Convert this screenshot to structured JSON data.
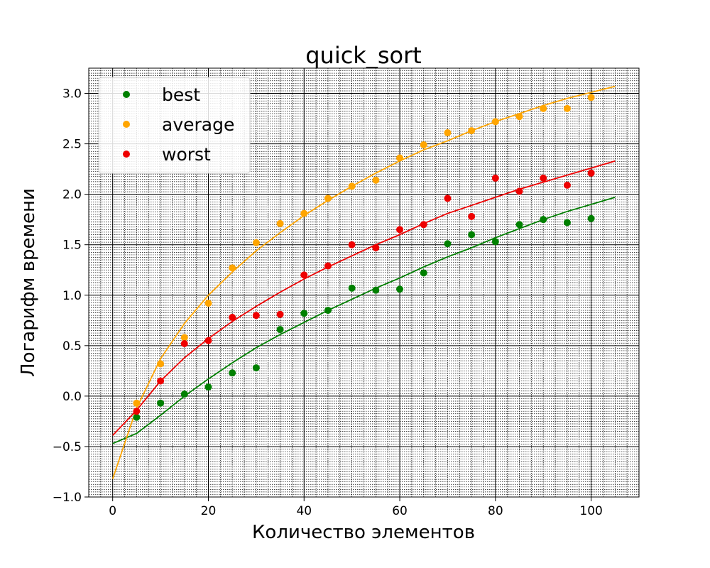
{
  "chart_data": {
    "type": "scatter",
    "title": "quick_sort",
    "xlabel": "Количество элементов",
    "ylabel": "Логарифм времени",
    "xlim": [
      -5,
      110
    ],
    "ylim": [
      -1.0,
      3.25
    ],
    "x_ticks": [
      0,
      20,
      40,
      60,
      80,
      100
    ],
    "x_tick_labels": [
      "0",
      "20",
      "40",
      "60",
      "80",
      "100"
    ],
    "y_ticks": [
      -1.0,
      -0.5,
      0.0,
      0.5,
      1.0,
      1.5,
      2.0,
      2.5,
      3.0
    ],
    "y_tick_labels": [
      "−1.0",
      "−0.5",
      "0.0",
      "0.5",
      "1.0",
      "1.5",
      "2.0",
      "2.5",
      "3.0"
    ],
    "grid": "major and minor",
    "legend_position": "top-left",
    "x": [
      5,
      10,
      15,
      20,
      25,
      30,
      35,
      40,
      45,
      50,
      55,
      60,
      65,
      70,
      75,
      80,
      85,
      90,
      95,
      100
    ],
    "series": [
      {
        "name": "best",
        "color": "#008000",
        "values": [
          -0.21,
          -0.07,
          0.02,
          0.09,
          0.23,
          0.28,
          0.66,
          0.82,
          0.85,
          1.07,
          1.05,
          1.06,
          1.22,
          1.51,
          1.6,
          1.53,
          1.7,
          1.75,
          1.72,
          1.76
        ],
        "fit_x": [
          0,
          5,
          10,
          15,
          20,
          25,
          30,
          35,
          40,
          45,
          50,
          55,
          60,
          65,
          70,
          75,
          80,
          85,
          90,
          95,
          100,
          105
        ],
        "fit_y": [
          -0.47,
          -0.37,
          -0.19,
          0.0,
          0.17,
          0.33,
          0.48,
          0.61,
          0.73,
          0.85,
          0.96,
          1.07,
          1.17,
          1.28,
          1.38,
          1.47,
          1.57,
          1.66,
          1.75,
          1.83,
          1.9,
          1.97
        ]
      },
      {
        "name": "average",
        "color": "#ffa500",
        "values": [
          -0.07,
          0.32,
          0.58,
          0.92,
          1.27,
          1.52,
          1.71,
          1.81,
          1.96,
          2.08,
          2.14,
          2.36,
          2.49,
          2.61,
          2.63,
          2.72,
          2.77,
          2.85,
          2.85,
          2.96
        ],
        "fit_x": [
          0,
          5,
          10,
          15,
          20,
          25,
          30,
          35,
          40,
          45,
          50,
          55,
          60,
          65,
          70,
          75,
          80,
          85,
          90,
          95,
          100,
          105
        ],
        "fit_y": [
          -0.82,
          -0.12,
          0.37,
          0.72,
          1.0,
          1.23,
          1.44,
          1.62,
          1.79,
          1.94,
          2.08,
          2.21,
          2.33,
          2.44,
          2.53,
          2.63,
          2.72,
          2.8,
          2.88,
          2.95,
          3.01,
          3.07
        ]
      },
      {
        "name": "worst",
        "color": "#ee0000",
        "values": [
          -0.15,
          0.15,
          0.52,
          0.55,
          0.78,
          0.8,
          0.81,
          1.2,
          1.29,
          1.5,
          1.47,
          1.65,
          1.7,
          1.96,
          1.78,
          2.16,
          2.03,
          2.16,
          2.09,
          2.21
        ],
        "fit_x": [
          0,
          5,
          10,
          15,
          20,
          25,
          30,
          35,
          40,
          45,
          50,
          55,
          60,
          65,
          70,
          75,
          80,
          85,
          90,
          95,
          100,
          105
        ],
        "fit_y": [
          -0.39,
          -0.14,
          0.15,
          0.38,
          0.57,
          0.74,
          0.89,
          1.03,
          1.16,
          1.28,
          1.39,
          1.5,
          1.6,
          1.71,
          1.81,
          1.89,
          1.97,
          2.05,
          2.12,
          2.19,
          2.26,
          2.33
        ]
      }
    ]
  }
}
